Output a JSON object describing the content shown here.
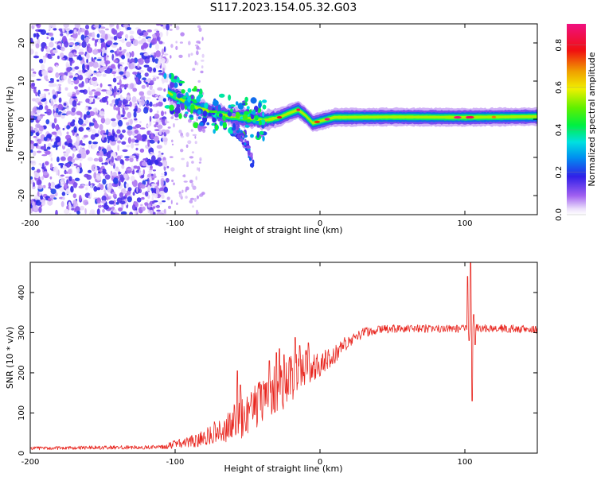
{
  "title": "S117.2023.154.05.32.G03",
  "colors": {
    "snr_line": "#e8261f",
    "axis": "#000000",
    "background": "#ffffff"
  },
  "chart_data": [
    {
      "type": "heatmap",
      "title": "S117.2023.154.05.32.G03",
      "xlabel": "Height of straight line (km)",
      "ylabel": "Frequency (Hz)",
      "xlim": [
        -200,
        150
      ],
      "ylim": [
        -25,
        25
      ],
      "xticks": [
        -200,
        -100,
        0,
        100
      ],
      "xtick_labels": [
        "-200",
        "-100",
        "0",
        "100"
      ],
      "yticks": [
        -20,
        -10,
        0,
        10,
        20
      ],
      "ytick_labels": [
        "-20",
        "-10",
        "0",
        "10",
        "20"
      ],
      "colorbar": {
        "label": "Normalized spectral amplitude",
        "range": [
          0,
          0.9
        ],
        "ticks": [
          0,
          0.2,
          0.4,
          0.6,
          0.8
        ],
        "tick_labels": [
          "0.0",
          "0.2",
          "0.4",
          "0.6",
          "0.8"
        ],
        "colormap": "rainbow (white-violet-blue-cyan-green-yellow-red-magenta)"
      },
      "features": {
        "noise_region_x": [
          -200,
          -105
        ],
        "noise_amplitude": 0.15,
        "carrier_ridge": [
          [
            -105,
            7
          ],
          [
            -95,
            5
          ],
          [
            -85,
            3
          ],
          [
            -75,
            2
          ],
          [
            -65,
            1
          ],
          [
            -55,
            0.5
          ],
          [
            -45,
            0
          ],
          [
            -38,
            -0.3
          ],
          [
            -28,
            0.5
          ],
          [
            -22,
            1.5
          ],
          [
            -15,
            2.5
          ],
          [
            -10,
            1
          ],
          [
            -5,
            -1
          ],
          [
            0,
            -0.5
          ],
          [
            10,
            0.5
          ],
          [
            50,
            0.6
          ],
          [
            100,
            0.5
          ],
          [
            150,
            0.7
          ]
        ],
        "ridge_amplitude": 0.55,
        "scattered_branch": [
          [
            -60,
            -2
          ],
          [
            -55,
            -4
          ],
          [
            -50,
            -7
          ],
          [
            -46,
            -12
          ]
        ]
      }
    },
    {
      "type": "line",
      "xlabel": "Height of straight line (km)",
      "ylabel": "SNR (10 * v/v)",
      "xlim": [
        -200,
        150
      ],
      "ylim": [
        0,
        475
      ],
      "xticks": [
        -200,
        -100,
        0,
        100
      ],
      "xtick_labels": [
        "-200",
        "-100",
        "0",
        "100"
      ],
      "yticks": [
        0,
        100,
        200,
        300,
        400
      ],
      "ytick_labels": [
        "0",
        "100",
        "200",
        "300",
        "400"
      ],
      "series": [
        {
          "name": "SNR",
          "envelope": [
            [
              -200,
              12
            ],
            [
              -150,
              14
            ],
            [
              -110,
              15
            ],
            [
              -100,
              22
            ],
            [
              -90,
              28
            ],
            [
              -80,
              38
            ],
            [
              -70,
              55
            ],
            [
              -60,
              75
            ],
            [
              -50,
              100
            ],
            [
              -40,
              135
            ],
            [
              -30,
              160
            ],
            [
              -20,
              185
            ],
            [
              -10,
              215
            ],
            [
              0,
              220
            ],
            [
              10,
              245
            ],
            [
              20,
              280
            ],
            [
              30,
              300
            ],
            [
              40,
              307
            ],
            [
              50,
              310
            ],
            [
              75,
              310
            ],
            [
              95,
              310
            ],
            [
              105,
              312
            ],
            [
              125,
              310
            ],
            [
              150,
              308
            ]
          ],
          "noise_amplitude": [
            [
              -200,
              4
            ],
            [
              -110,
              5
            ],
            [
              -100,
              10
            ],
            [
              -80,
              20
            ],
            [
              -65,
              40
            ],
            [
              -55,
              55
            ],
            [
              -40,
              60
            ],
            [
              -25,
              65
            ],
            [
              -10,
              45
            ],
            [
              0,
              30
            ],
            [
              15,
              20
            ],
            [
              30,
              12
            ],
            [
              50,
              10
            ],
            [
              150,
              10
            ]
          ],
          "spikes": [
            [
              -57,
              205
            ],
            [
              -55,
              170
            ],
            [
              -35,
              230
            ],
            [
              -30,
              250
            ],
            [
              -28,
              260
            ],
            [
              -25,
              245
            ],
            [
              -17,
              288
            ],
            [
              -14,
              268
            ],
            [
              -8,
              275
            ],
            [
              102,
              440
            ],
            [
              103,
              280
            ],
            [
              104,
              475
            ],
            [
              105,
              130
            ],
            [
              106,
              345
            ],
            [
              107,
              270
            ]
          ]
        }
      ]
    }
  ]
}
